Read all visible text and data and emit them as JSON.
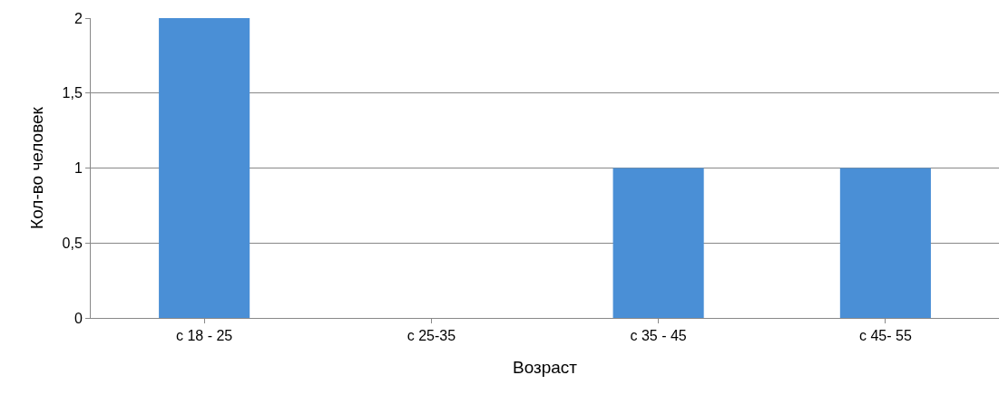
{
  "chart_data": {
    "type": "bar",
    "xlabel": "Возраст",
    "ylabel": "Кол-во человек",
    "categories": [
      "с 18 - 25",
      "с 25-35",
      "с 35 - 45",
      "с 45- 55"
    ],
    "values": [
      2,
      0,
      1,
      1
    ],
    "color": "#4a8fd6",
    "ylim": [
      0,
      2
    ],
    "yticks": [
      0,
      {
        "value": 0.5,
        "label": "0,5"
      },
      1,
      {
        "value": 1.5,
        "label": "1,5"
      },
      2
    ],
    "grid": "y"
  }
}
